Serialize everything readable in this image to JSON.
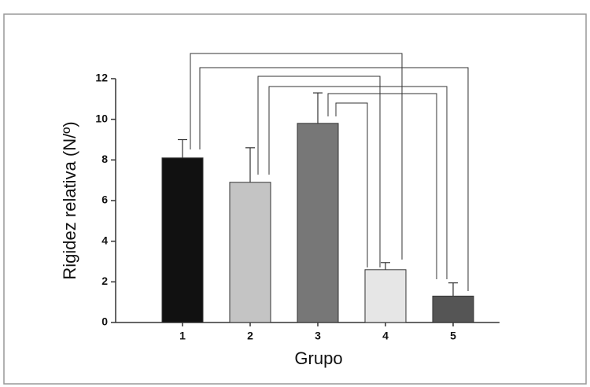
{
  "chart_data": {
    "type": "bar",
    "x_label": "Grupo",
    "y_label": "Rigidez relativa (N/º)",
    "categories": [
      "1",
      "2",
      "3",
      "4",
      "5"
    ],
    "values": [
      8.1,
      6.9,
      9.8,
      2.6,
      1.3
    ],
    "errors": [
      0.9,
      1.7,
      1.5,
      0.35,
      0.65
    ],
    "colors": [
      "#111111",
      "#c4c4c4",
      "#777777",
      "#e6e6e6",
      "#555555"
    ],
    "ylim": [
      0,
      12
    ],
    "yticks": [
      0,
      2,
      4,
      6,
      8,
      10,
      12
    ]
  }
}
